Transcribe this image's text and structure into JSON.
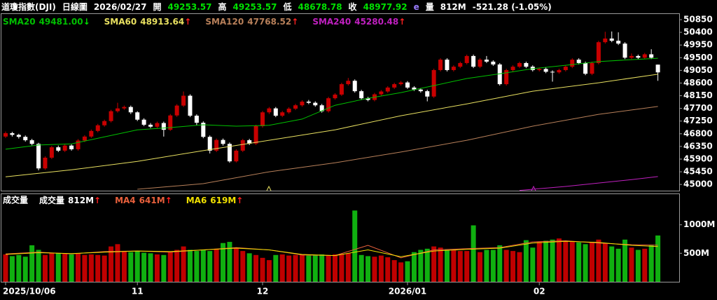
{
  "chart_data": [
    {
      "type": "candlestick",
      "header": [
        {
          "text": "道瓊指數(DJI)",
          "color": "#ffffff"
        },
        {
          "text": "日線圖",
          "color": "#ffffff"
        },
        {
          "text": "2026/02/27",
          "color": "#ffffff"
        },
        {
          "text": "開",
          "color": "#ffffff"
        },
        {
          "text": "49253.57",
          "color": "#00e000"
        },
        {
          "text": "高",
          "color": "#ffffff"
        },
        {
          "text": "49253.57",
          "color": "#00e000"
        },
        {
          "text": "低",
          "color": "#ffffff"
        },
        {
          "text": "48678.78",
          "color": "#00e000"
        },
        {
          "text": "收",
          "color": "#ffffff"
        },
        {
          "text": "48977.92",
          "color": "#00e000"
        },
        {
          "text": "e",
          "color": "#9a7cff"
        },
        {
          "text": "量",
          "color": "#ffffff"
        },
        {
          "text": "812M",
          "color": "#ffffff"
        },
        {
          "text": "-521.28 (-1.05%)",
          "color": "#ffffff"
        }
      ],
      "up_color": "#c80000",
      "down_color": "#ffffff",
      "ylim": [
        44780,
        51050
      ],
      "yticks": [
        50850,
        50400,
        49950,
        49500,
        49050,
        48600,
        48150,
        47700,
        47250,
        46800,
        46350,
        45900,
        45450,
        45000
      ],
      "open": [
        46700,
        46820,
        46760,
        46690,
        46570,
        46440,
        45570,
        45950,
        46320,
        46200,
        46380,
        46250,
        46560,
        46700,
        46900,
        47100,
        47250,
        47600,
        47700,
        47750,
        47560,
        47300,
        47120,
        47050,
        47180,
        46940,
        47450,
        47800,
        48150,
        47440,
        47190,
        46690,
        46200,
        46580,
        46440,
        45820,
        46200,
        46570,
        46450,
        47070,
        47560,
        47700,
        47440,
        47560,
        47690,
        47810,
        47940,
        47900,
        47810,
        47600,
        48060,
        48190,
        48560,
        48680,
        48310,
        48060,
        48000,
        48200,
        48300,
        48440,
        48560,
        48620,
        48440,
        48370,
        48310,
        48120,
        49060,
        49430,
        49060,
        49180,
        49310,
        49560,
        49180,
        49430,
        49360,
        49260,
        48560,
        49060,
        49180,
        49310,
        49180,
        49060,
        49100,
        49000,
        48980,
        49060,
        49180,
        49430,
        49310,
        48930,
        49310,
        50050,
        50180,
        50100,
        50000,
        49500,
        49560,
        49500,
        49620,
        49253.57
      ],
      "high": [
        46880,
        46870,
        46800,
        46740,
        46620,
        46480,
        46000,
        46370,
        46380,
        46430,
        46420,
        46610,
        46750,
        46950,
        47150,
        47300,
        47650,
        47900,
        47800,
        47800,
        47600,
        47350,
        47180,
        47230,
        47230,
        47500,
        47850,
        48300,
        48200,
        47490,
        47240,
        46740,
        46630,
        46630,
        46490,
        46250,
        46620,
        46620,
        47120,
        47610,
        47750,
        47750,
        47610,
        47740,
        47860,
        47990,
        48000,
        47950,
        47860,
        48110,
        48240,
        48610,
        48780,
        48730,
        48360,
        48110,
        48250,
        48350,
        48490,
        48610,
        48670,
        48670,
        48490,
        48420,
        48360,
        49110,
        49480,
        49480,
        49230,
        49360,
        49610,
        49610,
        49480,
        49560,
        49410,
        49310,
        49110,
        49230,
        49360,
        49360,
        49230,
        49150,
        49150,
        49050,
        49110,
        49230,
        49480,
        49480,
        49360,
        49360,
        50100,
        50420,
        50430,
        50400,
        50050,
        49650,
        49610,
        49670,
        49800,
        49253.57
      ],
      "low": [
        46650,
        46700,
        46630,
        46520,
        46390,
        45500,
        45520,
        45900,
        46150,
        46150,
        46200,
        46200,
        46510,
        46650,
        46850,
        47050,
        47200,
        47550,
        47650,
        47500,
        47250,
        47070,
        47000,
        47000,
        46700,
        46900,
        47400,
        47750,
        47390,
        47100,
        46640,
        46100,
        46150,
        46380,
        45770,
        45780,
        46150,
        46400,
        46400,
        47020,
        47500,
        47390,
        47390,
        47510,
        47640,
        47760,
        47850,
        47760,
        47550,
        47550,
        48010,
        48140,
        48510,
        48260,
        48010,
        47950,
        47950,
        48150,
        48250,
        48390,
        48510,
        48390,
        48320,
        48260,
        47950,
        48070,
        49010,
        49010,
        49010,
        49130,
        49260,
        49130,
        49130,
        49310,
        49210,
        48510,
        48510,
        49010,
        49130,
        49130,
        49010,
        49010,
        48950,
        48650,
        48930,
        49010,
        49130,
        49260,
        48880,
        48880,
        49260,
        50000,
        50050,
        49950,
        49450,
        49450,
        49450,
        49450,
        49450,
        48678.78
      ],
      "close": [
        46820,
        46760,
        46690,
        46570,
        46440,
        45570,
        45950,
        46320,
        46200,
        46380,
        46250,
        46560,
        46700,
        46900,
        47100,
        47250,
        47600,
        47700,
        47750,
        47560,
        47300,
        47120,
        47050,
        47180,
        46940,
        47450,
        47800,
        48150,
        47440,
        47190,
        46690,
        46200,
        46580,
        46440,
        45820,
        46200,
        46570,
        46450,
        47070,
        47560,
        47700,
        47440,
        47560,
        47690,
        47810,
        47940,
        47900,
        47810,
        47600,
        48060,
        48190,
        48560,
        48680,
        48310,
        48060,
        48000,
        48200,
        48300,
        48440,
        48560,
        48620,
        48440,
        48370,
        48310,
        48120,
        49060,
        49430,
        49060,
        49180,
        49310,
        49560,
        49180,
        49430,
        49360,
        49260,
        48560,
        49060,
        49180,
        49310,
        49180,
        49060,
        49100,
        49000,
        48980,
        49060,
        49180,
        49430,
        49310,
        48930,
        49310,
        50050,
        50180,
        50100,
        50000,
        49500,
        49560,
        49500,
        49620,
        49499.2,
        48977.92
      ],
      "series": [
        {
          "name": "SMA20",
          "color": "#00c000",
          "value_label": "49481.00",
          "arrow": "↓",
          "arrow_color": "#00e000",
          "x": [
            0,
            5,
            10,
            15,
            20,
            25,
            30,
            35,
            40,
            45,
            50,
            55,
            60,
            65,
            70,
            75,
            80,
            85,
            90,
            95,
            99
          ],
          "values": [
            46250,
            46400,
            46440,
            46690,
            46940,
            47020,
            47120,
            47070,
            47100,
            47320,
            47810,
            48060,
            48260,
            48510,
            48760,
            48930,
            49110,
            49230,
            49360,
            49430,
            49481
          ]
        },
        {
          "name": "SMA60",
          "color": "#e8e060",
          "value_label": "48913.64",
          "arrow": "↑",
          "arrow_color": "#ff2020",
          "x": [
            0,
            10,
            20,
            30,
            40,
            50,
            60,
            70,
            80,
            90,
            99
          ],
          "values": [
            45270,
            45520,
            45820,
            46200,
            46570,
            46940,
            47440,
            47860,
            48310,
            48610,
            48913.64
          ]
        },
        {
          "name": "SMA120",
          "color": "#b8805a",
          "value_label": "47768.52",
          "arrow": "↑",
          "arrow_color": "#ff2020",
          "x": [
            20,
            30,
            40,
            50,
            60,
            70,
            80,
            90,
            99
          ],
          "values": [
            44830,
            45030,
            45450,
            45770,
            46150,
            46570,
            47070,
            47490,
            47768.52
          ]
        },
        {
          "name": "SMA240",
          "color": "#c020c0",
          "value_label": "45280.48",
          "arrow": "↑",
          "arrow_color": "#ff2020",
          "x": [
            78,
            85,
            90,
            95,
            99
          ],
          "values": [
            44790,
            44930,
            45050,
            45170,
            45280.48
          ]
        }
      ]
    },
    {
      "type": "bar",
      "title": "成交量",
      "up_color": "#c00000",
      "down_color": "#10b010",
      "ylim": [
        0,
        1525
      ],
      "yticks": [
        {
          "value": 1000,
          "label": "1000M"
        },
        {
          "value": 500,
          "label": "500M"
        }
      ],
      "categories": [
        "2025/10/06",
        null,
        null,
        null,
        null,
        null,
        null,
        null,
        null,
        null,
        null,
        null,
        null,
        null,
        null,
        null,
        null,
        null,
        null,
        null,
        "11",
        null,
        null,
        null,
        null,
        null,
        null,
        null,
        null,
        null,
        null,
        null,
        null,
        null,
        null,
        null,
        null,
        null,
        null,
        "12",
        null,
        null,
        null,
        null,
        null,
        null,
        null,
        null,
        null,
        null,
        null,
        null,
        null,
        null,
        null,
        null,
        null,
        null,
        null,
        null,
        null,
        "2026/01",
        null,
        null,
        null,
        null,
        null,
        null,
        null,
        null,
        null,
        null,
        null,
        null,
        null,
        null,
        null,
        null,
        null,
        null,
        null,
        "02",
        null,
        null,
        null,
        null,
        null,
        null,
        null,
        null,
        null,
        null,
        null,
        null,
        null,
        null,
        null,
        null,
        null,
        null
      ],
      "series": [
        {
          "name": "成交量",
          "color": "#ffffff",
          "value_label": "812M",
          "arrow": "↑",
          "arrow_color": "#ff2020",
          "values": [
            480,
            450,
            470,
            440,
            640,
            560,
            470,
            500,
            500,
            490,
            480,
            500,
            470,
            480,
            470,
            460,
            620,
            660,
            540,
            520,
            540,
            510,
            500,
            480,
            470,
            520,
            560,
            620,
            560,
            540,
            560,
            540,
            580,
            680,
            700,
            600,
            540,
            500,
            470,
            420,
            380,
            470,
            480,
            460,
            470,
            480,
            460,
            470,
            480,
            470,
            480,
            490,
            500,
            1250,
            470,
            450,
            440,
            460,
            430,
            380,
            340,
            360,
            520,
            560,
            580,
            620,
            600,
            560,
            560,
            540,
            540,
            990,
            520,
            560,
            560,
            640,
            560,
            540,
            520,
            730,
            600,
            700,
            720,
            740,
            760,
            720,
            700,
            690,
            660,
            700,
            740,
            680,
            620,
            580,
            740,
            600,
            560,
            580,
            650,
            812
          ]
        }
      ],
      "lines": [
        {
          "name": "MA4",
          "color": "#e8603c",
          "value_label": "641M",
          "arrow": "↑",
          "arrow_color": "#ff2020",
          "x": [
            0,
            5,
            10,
            15,
            20,
            25,
            30,
            35,
            40,
            45,
            50,
            55,
            60,
            65,
            70,
            75,
            80,
            85,
            90,
            95,
            99
          ],
          "values": [
            490,
            520,
            490,
            530,
            540,
            520,
            560,
            600,
            560,
            470,
            460,
            640,
            420,
            560,
            580,
            600,
            700,
            720,
            680,
            650,
            641
          ]
        },
        {
          "name": "MA6",
          "color": "#f0e000",
          "value_label": "619M",
          "arrow": "↑",
          "arrow_color": "#ff2020",
          "x": [
            0,
            5,
            10,
            15,
            20,
            25,
            30,
            35,
            40,
            45,
            50,
            55,
            60,
            65,
            70,
            75,
            80,
            85,
            90,
            95,
            99
          ],
          "values": [
            480,
            510,
            495,
            520,
            540,
            530,
            560,
            590,
            560,
            480,
            460,
            560,
            440,
            540,
            570,
            590,
            680,
            710,
            690,
            640,
            619
          ]
        }
      ]
    }
  ]
}
